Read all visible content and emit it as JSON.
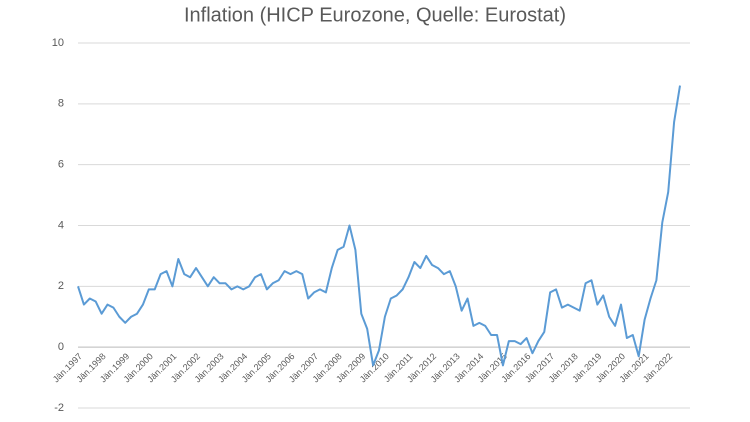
{
  "chart_data": {
    "type": "line",
    "title": "Inflation (HICP Eurozone, Quelle: Eurostat)",
    "categories": [
      "Jän.1997",
      null,
      null,
      null,
      "Jän.1998",
      null,
      null,
      null,
      "Jän.1999",
      null,
      null,
      null,
      "Jän.2000",
      null,
      null,
      null,
      "Jän.2001",
      null,
      null,
      null,
      "Jän.2002",
      null,
      null,
      null,
      "Jän.2003",
      null,
      null,
      null,
      "Jän.2004",
      null,
      null,
      null,
      "Jän.2005",
      null,
      null,
      null,
      "Jän.2006",
      null,
      null,
      null,
      "Jän.2007",
      null,
      null,
      null,
      "Jän.2008",
      null,
      null,
      null,
      "Jän.2009",
      null,
      null,
      null,
      "Jän.2010",
      null,
      null,
      null,
      "Jän.2011",
      null,
      null,
      null,
      "Jän.2012",
      null,
      null,
      null,
      "Jän.2013",
      null,
      null,
      null,
      "Jän.2014",
      null,
      null,
      null,
      "Jän.2015",
      null,
      null,
      null,
      "Jän.2016",
      null,
      null,
      null,
      "Jän.2017",
      null,
      null,
      null,
      "Jän.2018",
      null,
      null,
      null,
      "Jän.2019",
      null,
      null,
      null,
      "Jän.2020",
      null,
      null,
      null,
      "Jän.2021",
      null,
      null,
      null,
      "Jän.2022",
      null,
      null
    ],
    "series": [
      {
        "color": "#5b9bd5",
        "values": [
          2.0,
          1.4,
          1.6,
          1.5,
          1.1,
          1.4,
          1.3,
          1.0,
          0.8,
          1.0,
          1.1,
          1.4,
          1.9,
          1.9,
          2.4,
          2.5,
          2.0,
          2.9,
          2.4,
          2.3,
          2.6,
          2.3,
          2.0,
          2.3,
          2.1,
          2.1,
          1.9,
          2.0,
          1.9,
          2.0,
          2.3,
          2.4,
          1.9,
          2.1,
          2.2,
          2.5,
          2.4,
          2.5,
          2.4,
          1.6,
          1.8,
          1.9,
          1.8,
          2.6,
          3.2,
          3.3,
          4.0,
          3.2,
          1.1,
          0.6,
          -0.6,
          -0.1,
          1.0,
          1.6,
          1.7,
          1.9,
          2.3,
          2.8,
          2.6,
          3.0,
          2.7,
          2.6,
          2.4,
          2.5,
          2.0,
          1.2,
          1.6,
          0.7,
          0.8,
          0.7,
          0.4,
          0.4,
          -0.6,
          0.2,
          0.2,
          0.1,
          0.3,
          -0.2,
          0.2,
          0.5,
          1.8,
          1.9,
          1.3,
          1.4,
          1.3,
          1.2,
          2.1,
          2.2,
          1.4,
          1.7,
          1.0,
          0.7,
          1.4,
          0.3,
          0.4,
          -0.3,
          0.9,
          1.6,
          2.2,
          4.1,
          5.1,
          7.4,
          8.6
        ]
      }
    ],
    "ylim": [
      -2,
      10
    ],
    "yticks": [
      -2,
      0,
      2,
      4,
      6,
      8,
      10
    ],
    "grid": true
  }
}
